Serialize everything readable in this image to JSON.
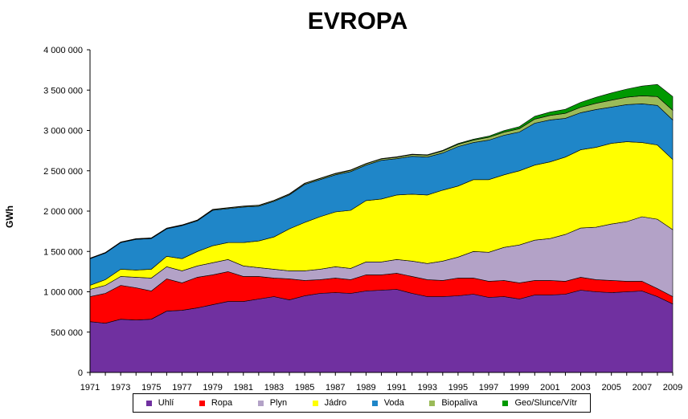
{
  "chart_data": {
    "type": "area",
    "stacked": true,
    "title": "EVROPA",
    "ylabel": "GWh",
    "xlabel": "",
    "ylim": [
      0,
      4000000
    ],
    "yticks": [
      0,
      500000,
      1000000,
      1500000,
      2000000,
      2500000,
      3000000,
      3500000,
      4000000
    ],
    "ytick_labels": [
      "0",
      "500 000",
      "1 000 000",
      "1 500 000",
      "2 000 000",
      "2 500 000",
      "3 000 000",
      "3 500 000",
      "4 000 000"
    ],
    "xtick_labels": [
      "1971",
      "1973",
      "1975",
      "1977",
      "1979",
      "1981",
      "1983",
      "1985",
      "1987",
      "1989",
      "1991",
      "1993",
      "1995",
      "1997",
      "1999",
      "2001",
      "2003",
      "2005",
      "2007",
      "2009"
    ],
    "x": [
      1971,
      1972,
      1973,
      1974,
      1975,
      1976,
      1977,
      1978,
      1979,
      1980,
      1981,
      1982,
      1983,
      1984,
      1985,
      1986,
      1987,
      1988,
      1989,
      1990,
      1991,
      1992,
      1993,
      1994,
      1995,
      1996,
      1997,
      1998,
      1999,
      2000,
      2001,
      2002,
      2003,
      2004,
      2005,
      2006,
      2007,
      2008,
      2009
    ],
    "grid": false,
    "legend_position": "bottom",
    "series": [
      {
        "name": "Uhlí",
        "color": "#7030A0",
        "values": [
          630000,
          610000,
          660000,
          650000,
          660000,
          760000,
          770000,
          800000,
          840000,
          880000,
          880000,
          910000,
          940000,
          900000,
          950000,
          980000,
          990000,
          980000,
          1010000,
          1020000,
          1030000,
          980000,
          940000,
          940000,
          950000,
          970000,
          930000,
          940000,
          910000,
          960000,
          960000,
          970000,
          1020000,
          1000000,
          990000,
          1000000,
          1010000,
          940000,
          850000
        ]
      },
      {
        "name": "Ropa",
        "color": "#FF0000",
        "values": [
          310000,
          370000,
          420000,
          400000,
          350000,
          400000,
          340000,
          380000,
          370000,
          370000,
          310000,
          280000,
          230000,
          260000,
          190000,
          170000,
          180000,
          170000,
          200000,
          190000,
          200000,
          210000,
          210000,
          200000,
          220000,
          200000,
          200000,
          200000,
          200000,
          180000,
          180000,
          160000,
          160000,
          150000,
          150000,
          130000,
          120000,
          100000,
          90000
        ]
      },
      {
        "name": "Plyn",
        "color": "#B3A2C7",
        "values": [
          90000,
          100000,
          110000,
          130000,
          160000,
          150000,
          150000,
          140000,
          150000,
          150000,
          130000,
          110000,
          110000,
          100000,
          120000,
          130000,
          140000,
          140000,
          160000,
          160000,
          170000,
          190000,
          200000,
          240000,
          260000,
          330000,
          360000,
          410000,
          470000,
          500000,
          520000,
          580000,
          610000,
          650000,
          700000,
          740000,
          800000,
          860000,
          830000
        ]
      },
      {
        "name": "Jádro",
        "color": "#FFFF00",
        "values": [
          50000,
          70000,
          90000,
          90000,
          110000,
          130000,
          150000,
          180000,
          210000,
          210000,
          290000,
          330000,
          400000,
          520000,
          600000,
          650000,
          680000,
          720000,
          760000,
          780000,
          800000,
          830000,
          850000,
          880000,
          880000,
          890000,
          900000,
          900000,
          920000,
          930000,
          950000,
          960000,
          970000,
          990000,
          1000000,
          990000,
          920000,
          920000,
          870000
        ]
      },
      {
        "name": "Voda",
        "color": "#1F86C8",
        "values": [
          330000,
          330000,
          330000,
          380000,
          380000,
          340000,
          410000,
          380000,
          440000,
          420000,
          440000,
          430000,
          440000,
          420000,
          470000,
          460000,
          460000,
          480000,
          440000,
          480000,
          450000,
          470000,
          470000,
          460000,
          490000,
          460000,
          490000,
          490000,
          480000,
          520000,
          520000,
          480000,
          460000,
          470000,
          450000,
          460000,
          480000,
          490000,
          490000
        ]
      },
      {
        "name": "Biopaliva",
        "color": "#9BBB59",
        "values": [
          5000,
          5000,
          5000,
          6000,
          6000,
          7000,
          7000,
          8000,
          8000,
          9000,
          9000,
          10000,
          10000,
          11000,
          12000,
          13000,
          14000,
          15000,
          16000,
          17000,
          18000,
          20000,
          22000,
          25000,
          28000,
          30000,
          34000,
          38000,
          42000,
          50000,
          56000,
          62000,
          68000,
          76000,
          85000,
          92000,
          100000,
          110000,
          120000
        ]
      },
      {
        "name": "Geo/Slunce/Vítr",
        "color": "#009900",
        "values": [
          3000,
          3000,
          3000,
          3000,
          3000,
          3000,
          3000,
          3000,
          4000,
          4000,
          4000,
          4000,
          4000,
          4000,
          4000,
          5000,
          5000,
          5000,
          5000,
          5000,
          6000,
          6000,
          7000,
          8000,
          10000,
          12000,
          15000,
          20000,
          25000,
          35000,
          42000,
          50000,
          60000,
          75000,
          90000,
          100000,
          120000,
          150000,
          170000
        ]
      }
    ]
  }
}
